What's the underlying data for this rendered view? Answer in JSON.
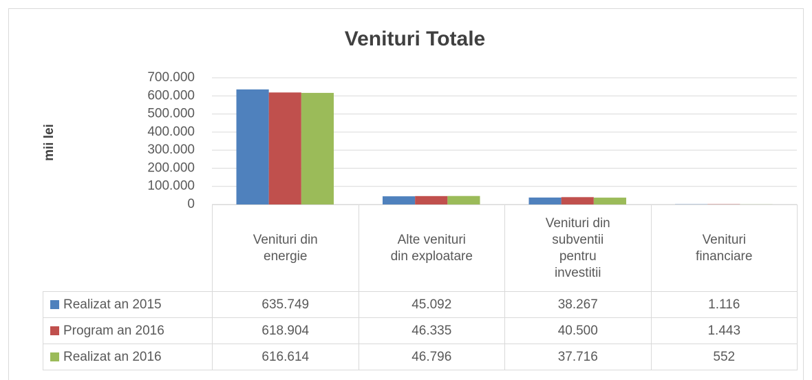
{
  "chart_data": {
    "type": "bar",
    "title": "Venituri Totale",
    "y_label": "mii lei",
    "categories": [
      "Venituri din energie",
      "Alte venituri din exploatare",
      "Venituri din subventii pentru investitii",
      "Venituri financiare"
    ],
    "series": [
      {
        "name": "Realizat an 2015",
        "color": "#4f81bd",
        "values": [
          635749,
          45092,
          38267,
          1116
        ],
        "value_labels": [
          "635.749",
          "45.092",
          "38.267",
          "1.116"
        ]
      },
      {
        "name": "Program an 2016",
        "color": "#c0504d",
        "values": [
          618904,
          46335,
          40500,
          1443
        ],
        "value_labels": [
          "618.904",
          "46.335",
          "40.500",
          "1.443"
        ]
      },
      {
        "name": "Realizat an 2016",
        "color": "#9bbb59",
        "values": [
          616614,
          46796,
          37716,
          552
        ],
        "value_labels": [
          "616.614",
          "46.796",
          "37.716",
          "552"
        ]
      }
    ],
    "ylim": [
      0,
      700000
    ],
    "yticks": [
      0,
      {
        "value": 100000,
        "label": "100.000"
      },
      {
        "value": 200000,
        "label": "200.000"
      },
      {
        "value": 300000,
        "label": "300.000"
      },
      {
        "value": 400000,
        "label": "400.000"
      },
      {
        "value": 500000,
        "label": "500.000"
      },
      {
        "value": 600000,
        "label": "600.000"
      },
      {
        "value": 700000,
        "label": "700.000"
      }
    ],
    "grid": true
  }
}
